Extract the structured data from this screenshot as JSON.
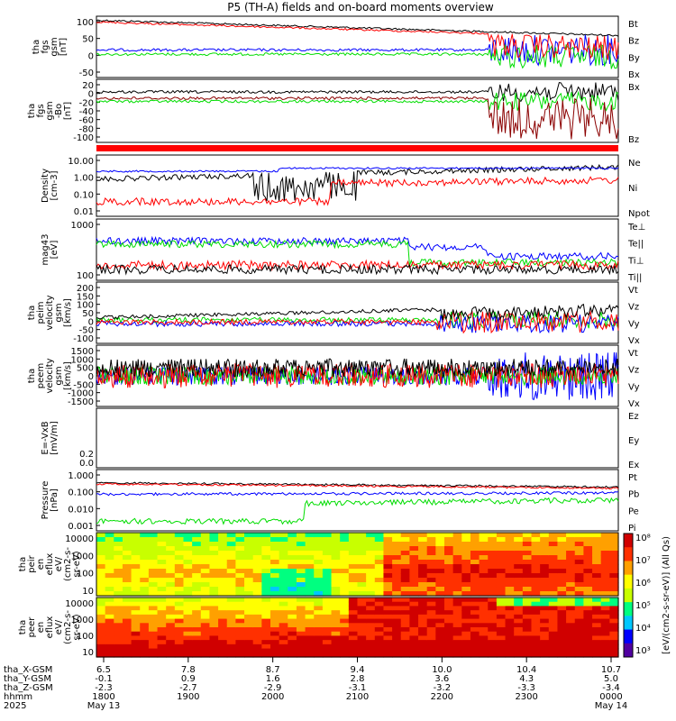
{
  "title": "P5 (TH-A) fields and on-board moments overview",
  "colors": {
    "black": "#000000",
    "red": "#ff0000",
    "green": "#00dd00",
    "blue": "#0000ff",
    "darkred": "#8b0000"
  },
  "chart_data": {
    "type": "line",
    "panels": [
      {
        "ylabel": [
          "tha",
          "fgs",
          "gsm",
          "[nT]"
        ],
        "yticks": [
          "100",
          "50",
          "0",
          "-50"
        ],
        "ylim": [
          -75,
          110
        ],
        "legend": [
          {
            "name": "Bt",
            "color": "black"
          },
          {
            "name": "Bz",
            "color": "red"
          },
          {
            "name": "By",
            "color": "green"
          },
          {
            "name": "Bx",
            "color": "blue"
          }
        ]
      },
      {
        "ylabel": [
          "tha",
          "fgs",
          "gsm",
          "-Bo",
          "[nT]"
        ],
        "yticks": [
          "20",
          "0",
          "-20",
          "-40",
          "-60",
          "-80",
          "-100"
        ],
        "ylim": [
          -110,
          25
        ],
        "legend": [
          {
            "name": "Bx",
            "color": "black"
          },
          {
            "name": "Bz",
            "color": "darkred"
          }
        ]
      },
      {
        "ylabel": [
          "Density",
          "[cm-3]"
        ],
        "yticks": [
          "10.00",
          "1.00",
          "0.10",
          "0.01"
        ],
        "ylim": [
          0.005,
          40
        ],
        "legend": [
          {
            "name": "Ne",
            "color": "red"
          },
          {
            "name": "Ni",
            "color": "black"
          },
          {
            "name": "Npot",
            "color": "blue"
          }
        ]
      },
      {
        "ylabel": [
          "mag43",
          "[eV]"
        ],
        "yticks": [
          "1000",
          "100"
        ],
        "ylim": [
          30,
          5000
        ],
        "legend": [
          {
            "name": "Te⊥",
            "color": "red"
          },
          {
            "name": "Te||",
            "color": "black"
          },
          {
            "name": "Ti⊥",
            "color": "green"
          },
          {
            "name": "Ti||",
            "color": "green"
          }
        ]
      },
      {
        "ylabel": [
          "tha",
          "peim",
          "velocity",
          "gsm",
          "[km/s]"
        ],
        "yticks": [
          "200",
          "150",
          "100",
          "50",
          "0",
          "-50",
          "-100"
        ],
        "ylim": [
          -120,
          240
        ],
        "legend": [
          {
            "name": "Vt",
            "color": "black"
          },
          {
            "name": "Vz",
            "color": "red"
          },
          {
            "name": "Vy",
            "color": "green"
          },
          {
            "name": "Vx",
            "color": "blue"
          }
        ]
      },
      {
        "ylabel": [
          "tha",
          "peem",
          "velocity",
          "gsm",
          "[km/s]"
        ],
        "yticks": [
          "1500",
          "1000",
          "500",
          "0",
          "-500",
          "-1000",
          "-1500"
        ],
        "ylim": [
          -1500,
          1500
        ],
        "legend": [
          {
            "name": "Vt",
            "color": "black"
          },
          {
            "name": "Vz",
            "color": "red"
          },
          {
            "name": "Vy",
            "color": "green"
          },
          {
            "name": "Vx",
            "color": "blue"
          }
        ]
      },
      {
        "ylabel": [
          "E=-VxB",
          "[mV/m]"
        ],
        "yticks": [],
        "ylim": [
          -1,
          1
        ],
        "legend": [
          {
            "name": "Ez",
            "color": "red"
          },
          {
            "name": "Ey",
            "color": "green"
          },
          {
            "name": "Ex",
            "color": "blue"
          }
        ]
      },
      {
        "ylabel": [
          "Pressure",
          "[nPa]"
        ],
        "yticks": [
          "1.000",
          "0.100",
          "0.010",
          "0.001"
        ],
        "ylim": [
          0.0005,
          3
        ],
        "extra_ticks": [
          "0.0",
          "0.2"
        ],
        "legend": [
          {
            "name": "Pt",
            "color": "black"
          },
          {
            "name": "Pb",
            "color": "red"
          },
          {
            "name": "Pe",
            "color": "green"
          },
          {
            "name": "Pi",
            "color": "blue"
          }
        ]
      },
      {
        "ylabel": [
          "tha",
          "peir",
          "en",
          "eflux",
          "eV/",
          "(cm2-s-",
          "sr-eV)"
        ],
        "yticks": [
          "10000",
          "1000",
          "100",
          "10"
        ],
        "ylim": [
          5,
          25000
        ]
      },
      {
        "ylabel": [
          "tha",
          "peer",
          "en",
          "eflux",
          "eV/",
          "(cm2-s-",
          "sr-eV)"
        ],
        "yticks": [
          "10000",
          "1000",
          "100",
          "10"
        ],
        "ylim": [
          5,
          25000
        ]
      }
    ],
    "colorbar": {
      "label": "[eV/(cm2-s-sr-eV)] (All Qs)",
      "ticks": [
        "10⁸",
        "10⁷",
        "10⁶",
        "10⁵",
        "10⁴",
        "10³"
      ]
    },
    "x_axis": {
      "rows": [
        {
          "label": "tha_X-GSM",
          "values": [
            "6.5",
            "7.8",
            "8.7",
            "9.4",
            "10.0",
            "10.4",
            "10.7"
          ]
        },
        {
          "label": "tha_Y-GSM",
          "values": [
            "-0.1",
            "0.9",
            "1.6",
            "2.8",
            "3.6",
            "4.3",
            "5.0"
          ]
        },
        {
          "label": "tha_Z-GSM",
          "values": [
            "-2.3",
            "-2.7",
            "-2.9",
            "-3.1",
            "-3.2",
            "-3.3",
            "-3.4"
          ]
        },
        {
          "label": "hhmm",
          "values": [
            "1800",
            "1900",
            "2000",
            "2100",
            "2200",
            "2300",
            "0000"
          ]
        },
        {
          "label": "2025",
          "values": [
            "May 13",
            "",
            "",
            "",
            "",
            "",
            "May 14"
          ]
        }
      ]
    }
  }
}
